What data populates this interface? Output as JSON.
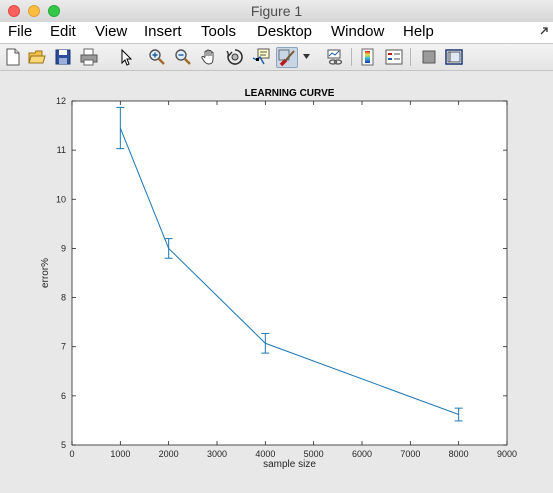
{
  "window": {
    "title": "Figure 1"
  },
  "menu": {
    "items": [
      {
        "label": "File",
        "left": 8
      },
      {
        "label": "Edit",
        "left": 50
      },
      {
        "label": "View",
        "left": 95
      },
      {
        "label": "Insert",
        "left": 144
      },
      {
        "label": "Tools",
        "left": 201
      },
      {
        "label": "Desktop",
        "left": 257
      },
      {
        "label": "Window",
        "left": 331
      },
      {
        "label": "Help",
        "left": 403
      }
    ]
  },
  "toolbar": {
    "icons": [
      "new-figure-icon",
      "open-file-icon",
      "save-icon",
      "print-icon",
      "pointer-icon",
      "zoom-in-icon",
      "zoom-out-icon",
      "pan-hand-icon",
      "rotate-3d-icon",
      "data-cursor-icon",
      "brush-icon",
      "brush-dropdown-icon",
      "link-plot-icon",
      "colorbar-icon",
      "legend-icon",
      "hide-plot-tools-icon",
      "show-plot-tools-icon"
    ]
  },
  "colors": {
    "line": "#1f77b4",
    "axes_bg": "#ffffff",
    "figure_bg": "#e8e8e8"
  },
  "chart_data": {
    "type": "line",
    "title": "LEARNING CURVE",
    "xlabel": "sample size",
    "ylabel": "error%",
    "xlim": [
      0,
      9000
    ],
    "ylim": [
      5,
      12
    ],
    "xticks": [
      0,
      1000,
      2000,
      3000,
      4000,
      5000,
      6000,
      7000,
      8000,
      9000
    ],
    "yticks": [
      5,
      6,
      7,
      8,
      9,
      10,
      11,
      12
    ],
    "x": [
      1000,
      2000,
      4000,
      8000
    ],
    "y": [
      11.45,
      9.0,
      7.07,
      5.62
    ],
    "errors": [
      0.42,
      0.2,
      0.2,
      0.13
    ],
    "grid": false
  }
}
